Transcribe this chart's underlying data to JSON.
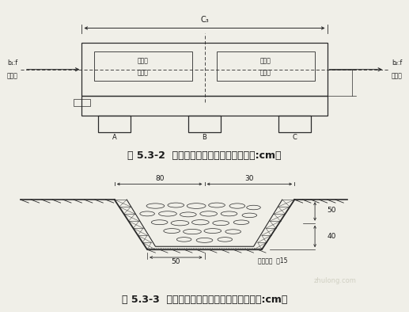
{
  "bg_color": "#f0efe8",
  "title1": "图 5.3-2  干砌石沉砂池平面设计图（单位:cm）",
  "title2": "图 5.3-3  干砌石排水沟典型设计断面图（单位:cm）",
  "title_fontsize": 9,
  "line_color": "#2a2a2a",
  "text_color": "#1a1a1a",
  "watermark": "zhulong.com",
  "label_top_left": "进水口",
  "label_top_right": "出水口",
  "dim_top": "C₃",
  "label_left_dim": "b₁:f",
  "label_right_dim": "b₂:f",
  "label_A": "A",
  "label_B": "B",
  "label_C": "C",
  "chamber_left_top": "沉砂室",
  "chamber_left_bot": "沉积物",
  "chamber_right_top": "格栅室",
  "chamber_right_bot": "过滤物",
  "dim_80": "80",
  "dim_30": "30",
  "dim_50": "50",
  "dim_40": "40",
  "dim_bot_50": "50",
  "sand_label": "砂砾垫层  厚15"
}
